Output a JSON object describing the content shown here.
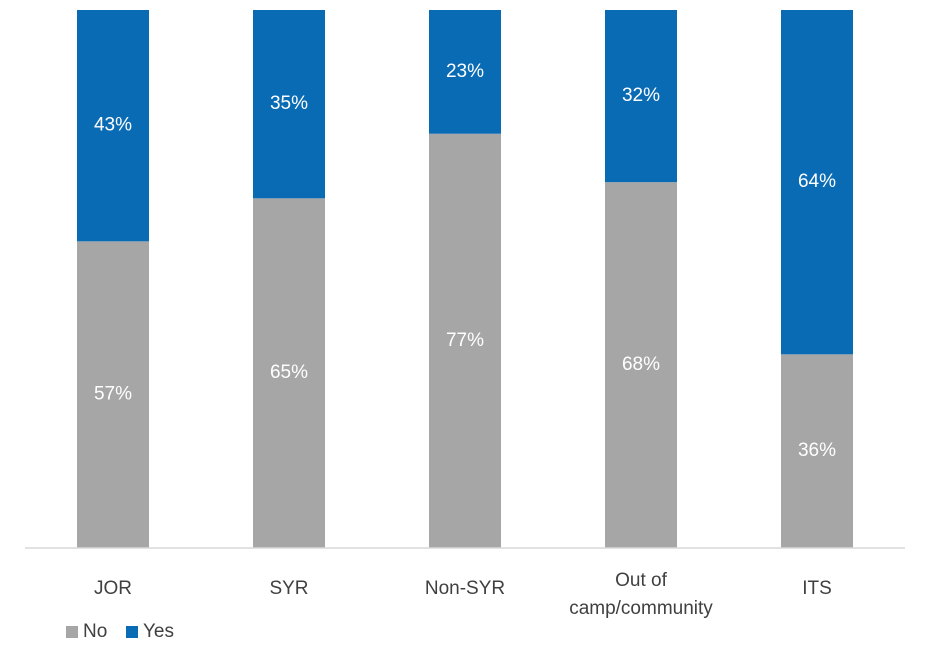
{
  "chart_data": {
    "type": "bar",
    "stacked": true,
    "normalized": true,
    "categories": [
      [
        "JOR"
      ],
      [
        "SYR"
      ],
      [
        "Non-SYR"
      ],
      [
        "Out of",
        "camp/community"
      ],
      [
        "ITS"
      ]
    ],
    "series": [
      {
        "name": "No",
        "color": "#a6a6a6",
        "values": [
          57,
          65,
          77,
          68,
          36
        ],
        "labels": [
          "57%",
          "65%",
          "77%",
          "68%",
          "36%"
        ]
      },
      {
        "name": "Yes",
        "color": "#0a6bb5",
        "values": [
          43,
          35,
          23,
          32,
          64
        ],
        "labels": [
          "43%",
          "35%",
          "23%",
          "32%",
          "64%"
        ]
      }
    ],
    "ylim": [
      0,
      100
    ],
    "grid": false,
    "legend_position": "bottom-left"
  }
}
